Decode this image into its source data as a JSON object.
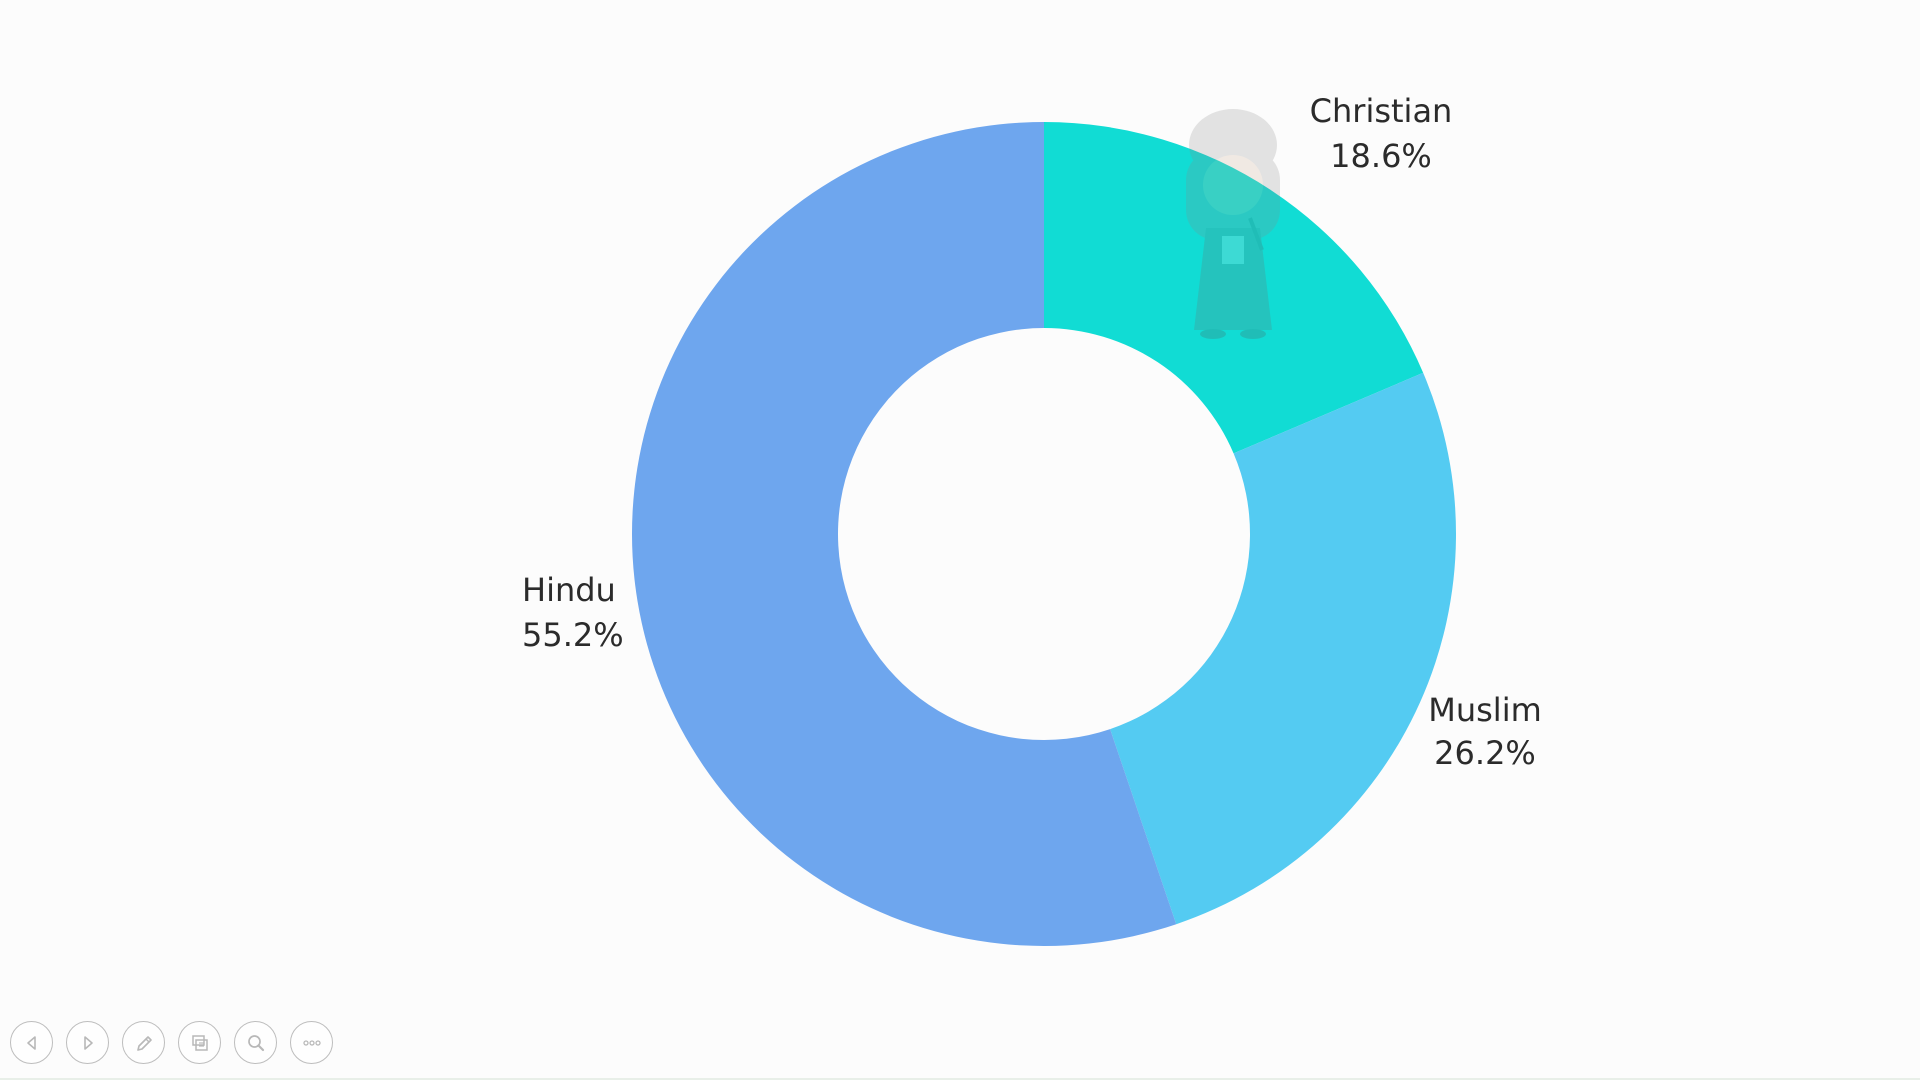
{
  "chart_data": {
    "type": "pie",
    "donut": true,
    "start": "top",
    "direction": "clockwise",
    "slices": [
      {
        "name": "Christian",
        "value": 18.6,
        "label": "18.6%",
        "color": "#11dcd4"
      },
      {
        "name": "Muslim",
        "value": 26.2,
        "label": "26.2%",
        "color": "#54cbf2"
      },
      {
        "name": "Hindu",
        "value": 55.2,
        "label": "55.2%",
        "color": "#6ea6ee"
      }
    ]
  },
  "colors": {
    "background": "#fcfcfc",
    "label_text": "#2b2b2b",
    "toolbar_icon": "#b8b8b8"
  },
  "toolbar": {
    "buttons": [
      {
        "name": "previous-slide-button",
        "icon": "triangle-left-icon"
      },
      {
        "name": "next-slide-button",
        "icon": "triangle-right-icon"
      },
      {
        "name": "pen-button",
        "icon": "pen-icon"
      },
      {
        "name": "slides-grid-button",
        "icon": "slides-icon"
      },
      {
        "name": "zoom-button",
        "icon": "magnifier-icon"
      },
      {
        "name": "more-options-button",
        "icon": "ellipsis-icon"
      }
    ]
  }
}
